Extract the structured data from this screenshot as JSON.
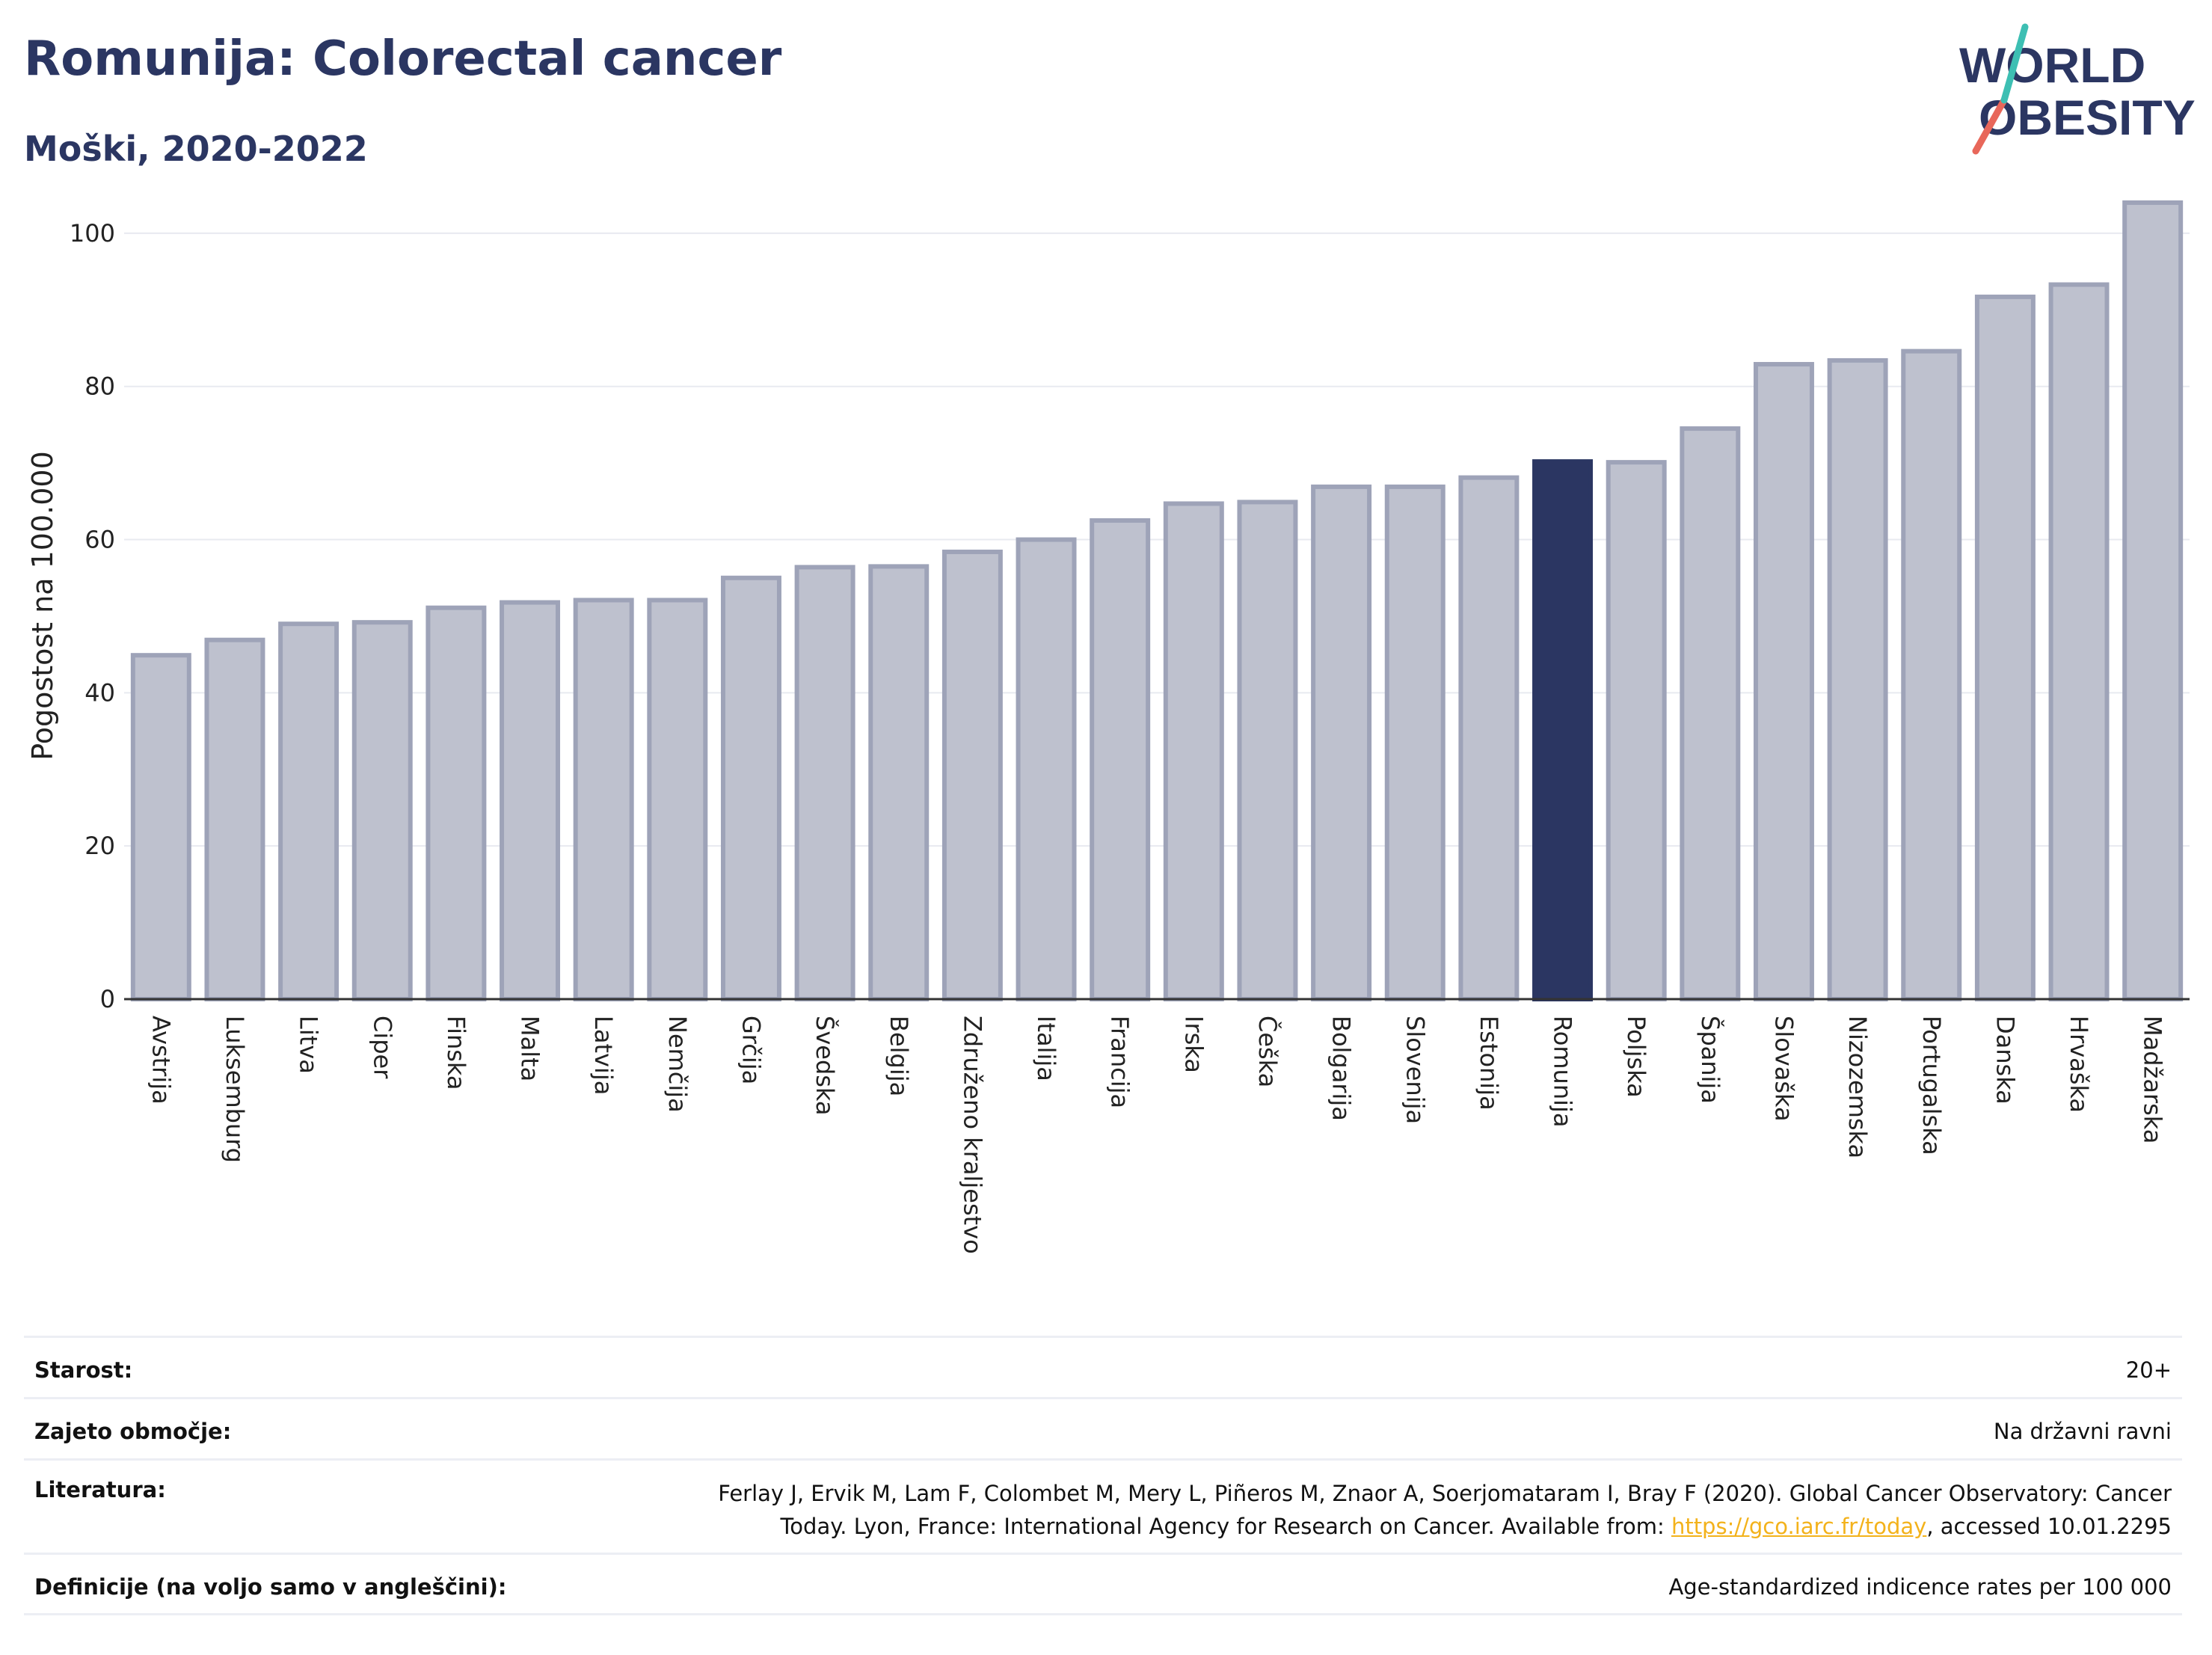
{
  "header": {
    "title": "Romunija: Colorectal cancer",
    "subtitle": "Moški, 2020-2022"
  },
  "logo": {
    "line1": "WORLD",
    "line2": "OBESITY",
    "slash_colors": [
      "#e8675a",
      "#3dbfb3"
    ]
  },
  "colors": {
    "bar_fill": "#bec1ce",
    "bar_stroke": "#9ea3b8",
    "highlight": "#2b3662",
    "axis_text": "#222222",
    "grid": "#e8eaf0"
  },
  "chart_data": {
    "type": "bar",
    "ylabel": "Pogostost na 100.000",
    "ylim": [
      0,
      108
    ],
    "yticks": [
      0,
      20,
      40,
      60,
      80,
      100
    ],
    "grid": true,
    "highlight_category": "Romunija",
    "categories": [
      "Avstrija",
      "Luksemburg",
      "Litva",
      "Ciper",
      "Finska",
      "Malta",
      "Latvija",
      "Nemčija",
      "Grčija",
      "Švedska",
      "Belgija",
      "Združeno kraljestvo",
      "Italija",
      "Francija",
      "Irska",
      "Češka",
      "Bolgarija",
      "Slovenija",
      "Estonija",
      "Romunija",
      "Poljska",
      "Španija",
      "Slovaška",
      "Nizozemska",
      "Portugalska",
      "Danska",
      "Hrvaška",
      "Madžarska"
    ],
    "values": [
      44.9,
      46.9,
      49.0,
      49.2,
      51.1,
      51.8,
      52.1,
      52.1,
      55.0,
      56.4,
      56.5,
      58.4,
      60.0,
      62.5,
      64.7,
      64.9,
      66.9,
      66.9,
      68.1,
      70.2,
      70.1,
      74.5,
      82.9,
      83.4,
      84.6,
      91.7,
      93.3,
      104.0
    ]
  },
  "info": [
    {
      "label": "Starost:",
      "value": "20+"
    },
    {
      "label": "Zajeto območje:",
      "value": "Na državni ravni"
    },
    {
      "label": "Literatura:",
      "value_line1": "Ferlay J, Ervik M, Lam F, Colombet M, Mery L, Piñeros M, Znaor A, Soerjomataram I, Bray F (2020). Global Cancer Observatory: Cancer",
      "value_line2_pre": "Today. Lyon, France: International Agency for Research on Cancer. Available from: ",
      "link": "https://gco.iarc.fr/today",
      "value_line2_post": ", accessed 10.01.2295"
    },
    {
      "label": "Definicije (na voljo samo v angleščini):",
      "value": "Age-standardized indicence rates per 100 000"
    }
  ]
}
